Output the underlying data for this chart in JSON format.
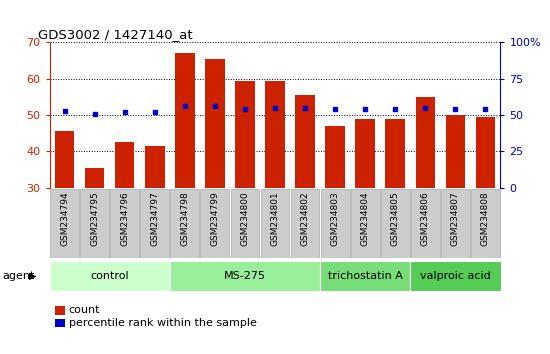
{
  "title": "GDS3002 / 1427140_at",
  "samples": [
    "GSM234794",
    "GSM234795",
    "GSM234796",
    "GSM234797",
    "GSM234798",
    "GSM234799",
    "GSM234800",
    "GSM234801",
    "GSM234802",
    "GSM234803",
    "GSM234804",
    "GSM234805",
    "GSM234806",
    "GSM234807",
    "GSM234808"
  ],
  "counts": [
    45.5,
    35.5,
    42.5,
    41.5,
    67.0,
    65.5,
    59.5,
    59.5,
    55.5,
    47.0,
    49.0,
    49.0,
    55.0,
    50.0,
    49.5
  ],
  "percentiles": [
    53,
    51,
    52,
    52,
    56,
    56,
    54,
    55,
    55,
    54,
    54,
    54,
    55,
    54,
    54
  ],
  "bar_color": "#cc2200",
  "dot_color": "#0000cc",
  "ylim_left": [
    30,
    70
  ],
  "ylim_right": [
    0,
    100
  ],
  "yticks_left": [
    30,
    40,
    50,
    60,
    70
  ],
  "yticks_right": [
    0,
    25,
    50,
    75,
    100
  ],
  "ytick_labels_right": [
    "0",
    "25",
    "50",
    "75",
    "100%"
  ],
  "groups": [
    {
      "label": "control",
      "start": 0,
      "end": 3,
      "color": "#ccffcc"
    },
    {
      "label": "MS-275",
      "start": 4,
      "end": 8,
      "color": "#99ee99"
    },
    {
      "label": "trichostatin A",
      "start": 9,
      "end": 11,
      "color": "#77dd77"
    },
    {
      "label": "valproic acid",
      "start": 12,
      "end": 14,
      "color": "#55cc55"
    }
  ],
  "legend_count": "count",
  "legend_percentile": "percentile rank within the sample",
  "plot_bg": "#ffffff",
  "tick_bg": "#cccccc",
  "tick_bg_border": "#aaaaaa"
}
